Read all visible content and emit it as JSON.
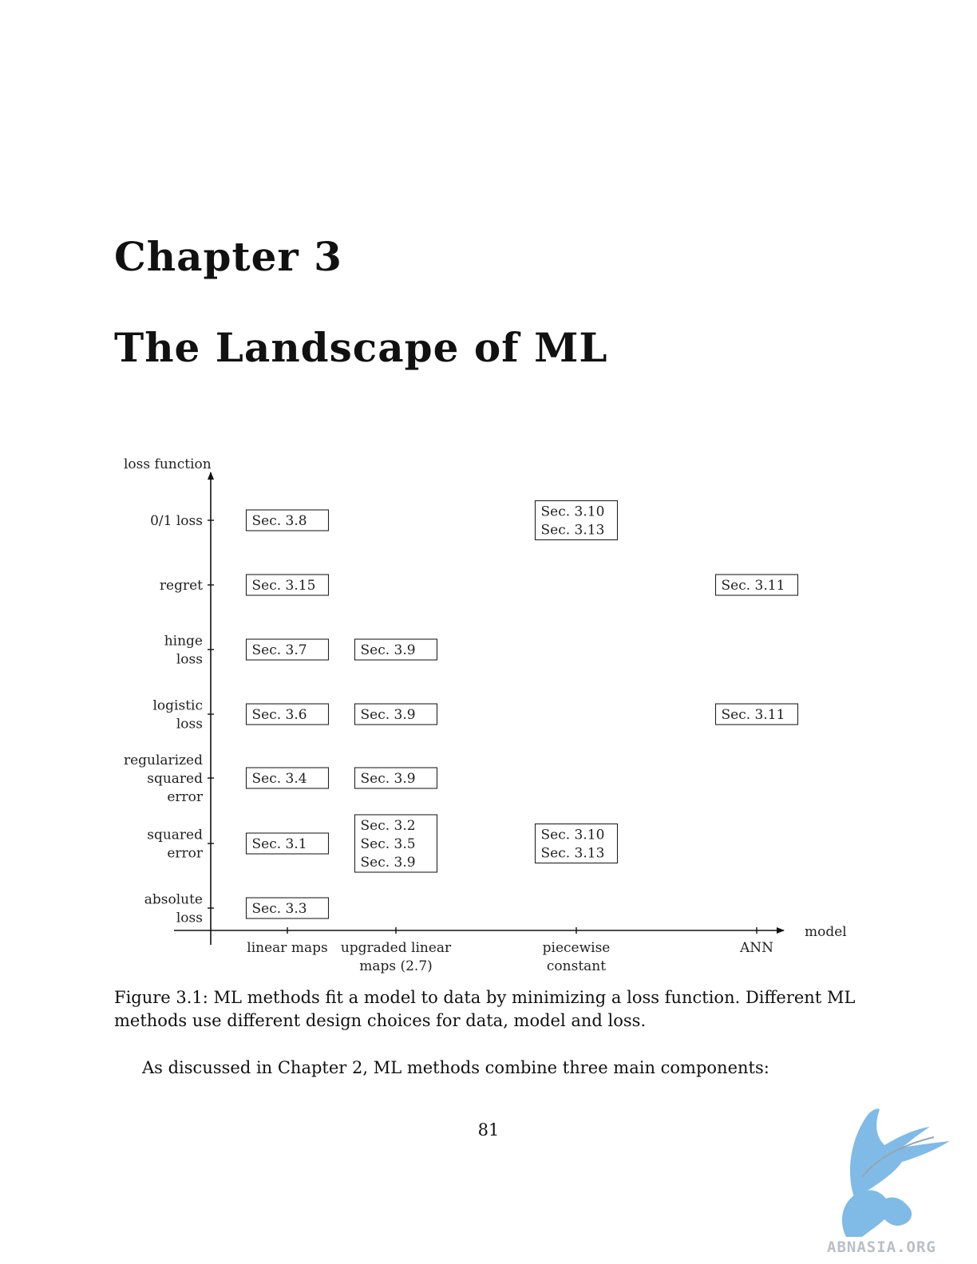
{
  "chapter": {
    "label": "Chapter 3",
    "title": "The Landscape of ML"
  },
  "figure": {
    "y_axis_title": "loss function",
    "x_axis_title": "model",
    "y_labels": [
      [
        "0/1 loss"
      ],
      [
        "regret"
      ],
      [
        "hinge",
        "loss"
      ],
      [
        "logistic",
        "loss"
      ],
      [
        "regularized",
        "squared",
        "error"
      ],
      [
        "squared",
        "error"
      ],
      [
        "absolute",
        "loss"
      ]
    ],
    "x_labels": [
      [
        "linear maps"
      ],
      [
        "upgraded linear",
        "maps (2.7)"
      ],
      [
        "piecewise",
        "constant"
      ],
      [
        "ANN"
      ]
    ],
    "cells": [
      {
        "row": 0,
        "col": 0,
        "lines": [
          "Sec. 3.8"
        ]
      },
      {
        "row": 0,
        "col": 2,
        "lines": [
          "Sec. 3.10",
          "Sec. 3.13"
        ]
      },
      {
        "row": 1,
        "col": 0,
        "lines": [
          "Sec. 3.15"
        ]
      },
      {
        "row": 1,
        "col": 3,
        "lines": [
          "Sec. 3.11"
        ]
      },
      {
        "row": 2,
        "col": 0,
        "lines": [
          "Sec. 3.7"
        ]
      },
      {
        "row": 2,
        "col": 1,
        "lines": [
          "Sec. 3.9"
        ]
      },
      {
        "row": 3,
        "col": 0,
        "lines": [
          "Sec. 3.6"
        ]
      },
      {
        "row": 3,
        "col": 1,
        "lines": [
          "Sec. 3.9"
        ]
      },
      {
        "row": 3,
        "col": 3,
        "lines": [
          "Sec. 3.11"
        ]
      },
      {
        "row": 4,
        "col": 0,
        "lines": [
          "Sec. 3.4"
        ]
      },
      {
        "row": 4,
        "col": 1,
        "lines": [
          "Sec. 3.9"
        ]
      },
      {
        "row": 5,
        "col": 0,
        "lines": [
          "Sec. 3.1"
        ]
      },
      {
        "row": 5,
        "col": 1,
        "lines": [
          "Sec. 3.2",
          "Sec. 3.5",
          "Sec. 3.9"
        ]
      },
      {
        "row": 5,
        "col": 2,
        "lines": [
          "Sec. 3.10",
          "Sec. 3.13"
        ]
      },
      {
        "row": 6,
        "col": 0,
        "lines": [
          "Sec. 3.3"
        ]
      }
    ],
    "caption": "Figure 3.1: ML methods fit a model to data by minimizing a loss function. Different ML methods use different design choices for data, model and loss."
  },
  "body_text": "As discussed in Chapter 2, ML methods combine three main components:",
  "page_number": "81",
  "watermark": {
    "text": "ABNASIA.ORG",
    "color": "#7fbbe6"
  }
}
